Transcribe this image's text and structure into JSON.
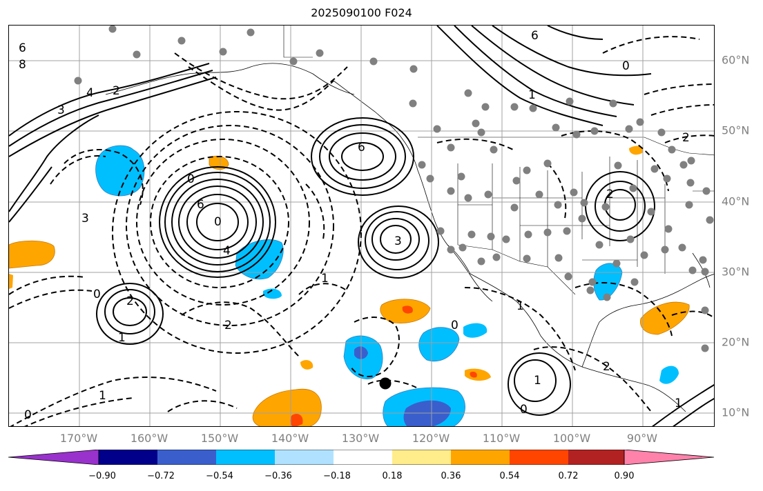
{
  "title": "2025090100 F024",
  "longitude_labels": [
    "170°W",
    "160°W",
    "150°W",
    "140°W",
    "130°W",
    "120°W",
    "110°W",
    "100°W",
    "90°W"
  ],
  "latitude_labels": [
    "60°N",
    "50°N",
    "40°N",
    "30°N",
    "20°N",
    "10°N"
  ],
  "colorbar": {
    "tick_labels": [
      "−0.90",
      "−0.72",
      "−0.54",
      "−0.36",
      "−0.18",
      "0.18",
      "0.36",
      "0.54",
      "0.72",
      "0.90"
    ],
    "colors": [
      "#9932cc",
      "#00008b",
      "#3a5fcd",
      "#00bfff",
      "#b0e2ff",
      "#ffffff",
      "#ffec8b",
      "#ffa500",
      "#ff4500",
      "#b22222",
      "#ff82ab"
    ]
  },
  "map": {
    "projection_extent": {
      "lon": [
        -180,
        -80
      ],
      "lat": [
        8,
        65
      ]
    },
    "gridline_color": "#a0a0a0",
    "station_marker_color": "#808080",
    "contour_labels": [
      {
        "text": "6"
      },
      {
        "text": "8"
      },
      {
        "text": "4"
      },
      {
        "text": "3"
      },
      {
        "text": "2"
      },
      {
        "text": "0"
      },
      {
        "text": "6"
      },
      {
        "text": "0"
      },
      {
        "text": "4"
      },
      {
        "text": "3"
      },
      {
        "text": "6"
      },
      {
        "text": "3"
      },
      {
        "text": "2"
      },
      {
        "text": "0"
      },
      {
        "text": "1"
      },
      {
        "text": "2"
      },
      {
        "text": "1"
      },
      {
        "text": "0"
      },
      {
        "text": "1"
      },
      {
        "text": "2"
      },
      {
        "text": "6"
      },
      {
        "text": "1"
      },
      {
        "text": "0"
      },
      {
        "text": "2"
      },
      {
        "text": "1"
      },
      {
        "text": "0"
      },
      {
        "text": "2"
      },
      {
        "text": "1"
      },
      {
        "text": "0"
      },
      {
        "text": "1"
      }
    ]
  }
}
